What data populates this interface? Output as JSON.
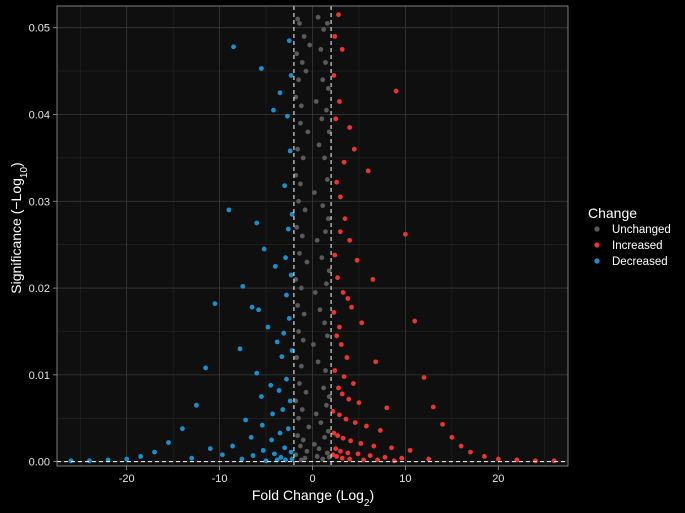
{
  "chart_data": {
    "type": "scatter",
    "title": "",
    "xlabel": "Fold Change (Log",
    "xlabel_sub": "2",
    "xlabel_end": ")",
    "ylabel": "Significance (−Log",
    "ylabel_sub": "10",
    "ylabel_end": ")",
    "xlim": [
      -27.5,
      27.5
    ],
    "ylim": [
      -0.0005,
      0.0525
    ],
    "x_ticks": [
      -20,
      -10,
      0,
      10,
      20
    ],
    "x_tick_labels": [
      "-20",
      "-10",
      "0",
      "10",
      "20"
    ],
    "y_ticks": [
      0,
      0.01,
      0.02,
      0.03,
      0.04,
      0.05
    ],
    "y_tick_labels": [
      "0.00",
      "0.01",
      "0.02",
      "0.03",
      "0.04",
      "0.05"
    ],
    "thresholds": {
      "x": [
        -2,
        2
      ],
      "y": 0
    },
    "grid": true,
    "legend": {
      "title": "Change",
      "position": "right"
    },
    "colors": {
      "background": "#000000",
      "panel": "#0f0f0f",
      "grid": "#3a3a3a",
      "Unchanged": "#5a5a5a",
      "Increased": "#ee3333",
      "Decreased": "#1a8fd0"
    },
    "series": [
      {
        "name": "Unchanged",
        "points": [
          [
            -1.6,
            0.051
          ],
          [
            -1.4,
            0.0505
          ],
          [
            -0.9,
            0.049
          ],
          [
            0.6,
            0.0512
          ],
          [
            1.2,
            0.0498
          ],
          [
            1.6,
            0.0505
          ],
          [
            -1.7,
            0.047
          ],
          [
            -1.1,
            0.046
          ],
          [
            -0.3,
            0.048
          ],
          [
            0.9,
            0.0475
          ],
          [
            1.4,
            0.046
          ],
          [
            -1.5,
            0.044
          ],
          [
            -0.7,
            0.045
          ],
          [
            1.1,
            0.044
          ],
          [
            1.7,
            0.043
          ],
          [
            -1.8,
            0.042
          ],
          [
            -1.2,
            0.041
          ],
          [
            0.4,
            0.0415
          ],
          [
            1.5,
            0.0405
          ],
          [
            -1.3,
            0.039
          ],
          [
            -0.5,
            0.038
          ],
          [
            1.0,
            0.0395
          ],
          [
            1.8,
            0.038
          ],
          [
            -1.6,
            0.036
          ],
          [
            -1.0,
            0.035
          ],
          [
            0.7,
            0.0365
          ],
          [
            1.3,
            0.035
          ],
          [
            -1.8,
            0.033
          ],
          [
            -1.3,
            0.032
          ],
          [
            0.2,
            0.031
          ],
          [
            1.6,
            0.0325
          ],
          [
            -1.5,
            0.03
          ],
          [
            -0.8,
            0.029
          ],
          [
            1.1,
            0.0295
          ],
          [
            1.7,
            0.028
          ],
          [
            -1.7,
            0.027
          ],
          [
            -1.1,
            0.026
          ],
          [
            0.5,
            0.0255
          ],
          [
            1.4,
            0.0265
          ],
          [
            -1.4,
            0.024
          ],
          [
            -0.6,
            0.023
          ],
          [
            1.0,
            0.0235
          ],
          [
            1.8,
            0.022
          ],
          [
            -1.8,
            0.021
          ],
          [
            -1.2,
            0.02
          ],
          [
            0.3,
            0.0195
          ],
          [
            1.5,
            0.0205
          ],
          [
            -1.6,
            0.018
          ],
          [
            -0.9,
            0.017
          ],
          [
            0.8,
            0.0175
          ],
          [
            1.3,
            0.016
          ],
          [
            -1.5,
            0.015
          ],
          [
            -1.0,
            0.014
          ],
          [
            0.1,
            0.0135
          ],
          [
            1.6,
            0.0145
          ],
          [
            -1.7,
            0.012
          ],
          [
            -1.2,
            0.011
          ],
          [
            0.6,
            0.0115
          ],
          [
            1.4,
            0.0105
          ],
          [
            -1.4,
            0.009
          ],
          [
            -0.7,
            0.008
          ],
          [
            1.2,
            0.0085
          ],
          [
            1.8,
            0.0075
          ],
          [
            -1.8,
            0.007
          ],
          [
            -1.1,
            0.006
          ],
          [
            0.4,
            0.0055
          ],
          [
            1.5,
            0.0065
          ],
          [
            -1.5,
            0.005
          ],
          [
            -0.4,
            0.004
          ],
          [
            0.9,
            0.0045
          ],
          [
            1.7,
            0.0035
          ],
          [
            -1.6,
            0.003
          ],
          [
            -1.0,
            0.0025
          ],
          [
            0.2,
            0.002
          ],
          [
            1.3,
            0.0028
          ],
          [
            -1.3,
            0.0018
          ],
          [
            -0.6,
            0.0012
          ],
          [
            0.7,
            0.0015
          ],
          [
            1.6,
            0.001
          ],
          [
            -1.8,
            0.0008
          ],
          [
            -0.8,
            0.0004
          ],
          [
            0.5,
            0.0006
          ],
          [
            1.1,
            0.0003
          ],
          [
            1.8,
            0.0005
          ],
          [
            -1.2,
            0.0002
          ]
        ]
      },
      {
        "name": "Increased",
        "points": [
          [
            9.0,
            0.0427
          ],
          [
            10.0,
            0.0262
          ],
          [
            11.0,
            0.0162
          ],
          [
            12.0,
            0.0097
          ],
          [
            13.0,
            0.0063
          ],
          [
            14.0,
            0.0043
          ],
          [
            15.0,
            0.0028
          ],
          [
            16.0,
            0.0018
          ],
          [
            17.0,
            0.0011
          ],
          [
            18.5,
            0.0006
          ],
          [
            20.0,
            0.0003
          ],
          [
            22.0,
            0.0002
          ],
          [
            24.0,
            0.0001
          ],
          [
            26.0,
            0.0001
          ],
          [
            4.0,
            0.0385
          ],
          [
            4.5,
            0.036
          ],
          [
            6.0,
            0.0335
          ],
          [
            3.0,
            0.0305
          ],
          [
            3.5,
            0.028
          ],
          [
            4.0,
            0.0255
          ],
          [
            4.8,
            0.0232
          ],
          [
            6.5,
            0.021
          ],
          [
            3.3,
            0.0195
          ],
          [
            4.2,
            0.0178
          ],
          [
            5.3,
            0.016
          ],
          [
            2.6,
            0.0145
          ],
          [
            3.1,
            0.0135
          ],
          [
            3.7,
            0.012
          ],
          [
            6.8,
            0.0115
          ],
          [
            2.4,
            0.0105
          ],
          [
            3.4,
            0.0098
          ],
          [
            4.4,
            0.009
          ],
          [
            2.8,
            0.0085
          ],
          [
            3.2,
            0.0078
          ],
          [
            3.9,
            0.0072
          ],
          [
            5.0,
            0.0068
          ],
          [
            8.0,
            0.0062
          ],
          [
            2.2,
            0.0058
          ],
          [
            2.9,
            0.0054
          ],
          [
            3.6,
            0.0049
          ],
          [
            4.6,
            0.0045
          ],
          [
            5.8,
            0.0041
          ],
          [
            7.3,
            0.0036
          ],
          [
            2.3,
            0.0033
          ],
          [
            2.7,
            0.003
          ],
          [
            3.3,
            0.0027
          ],
          [
            4.1,
            0.0024
          ],
          [
            5.2,
            0.0021
          ],
          [
            6.6,
            0.0018
          ],
          [
            8.5,
            0.0016
          ],
          [
            10.5,
            0.0013
          ],
          [
            2.5,
            0.0015
          ],
          [
            3.0,
            0.0012
          ],
          [
            3.8,
            0.001
          ],
          [
            4.9,
            0.0009
          ],
          [
            6.2,
            0.0007
          ],
          [
            7.8,
            0.0005
          ],
          [
            9.6,
            0.0004
          ],
          [
            12.5,
            0.0003
          ],
          [
            2.2,
            0.0008
          ],
          [
            2.6,
            0.0006
          ],
          [
            3.2,
            0.0004
          ],
          [
            4.0,
            0.0003
          ],
          [
            5.5,
            0.0002
          ],
          [
            7.0,
            0.0002
          ],
          [
            8.8,
            0.0001
          ],
          [
            2.4,
            0.049
          ],
          [
            2.8,
            0.0515
          ],
          [
            3.2,
            0.0475
          ],
          [
            2.3,
            0.0445
          ],
          [
            2.9,
            0.0415
          ],
          [
            2.5,
            0.0395
          ],
          [
            3.4,
            0.0345
          ],
          [
            2.6,
            0.0322
          ],
          [
            3.0,
            0.0265
          ],
          [
            2.4,
            0.0238
          ],
          [
            2.7,
            0.0212
          ],
          [
            3.8,
            0.0188
          ],
          [
            2.3,
            0.0172
          ],
          [
            2.9,
            0.0155
          ]
        ]
      },
      {
        "name": "Decreased",
        "points": [
          [
            -8.5,
            0.0478
          ],
          [
            -5.5,
            0.0453
          ],
          [
            -4.2,
            0.0405
          ],
          [
            -3.5,
            0.0425
          ],
          [
            -9.0,
            0.029
          ],
          [
            -6.0,
            0.0275
          ],
          [
            -5.2,
            0.0245
          ],
          [
            -4.0,
            0.0225
          ],
          [
            -7.5,
            0.0202
          ],
          [
            -10.5,
            0.0182
          ],
          [
            -6.5,
            0.0178
          ],
          [
            -5.8,
            0.0175
          ],
          [
            -4.8,
            0.0155
          ],
          [
            -3.8,
            0.0138
          ],
          [
            -7.8,
            0.013
          ],
          [
            -3.3,
            0.0121
          ],
          [
            -11.5,
            0.0108
          ],
          [
            -6.0,
            0.0102
          ],
          [
            -2.8,
            0.0095
          ],
          [
            -4.5,
            0.0088
          ],
          [
            -3.6,
            0.0082
          ],
          [
            -5.5,
            0.0075
          ],
          [
            -2.4,
            0.007
          ],
          [
            -12.5,
            0.0065
          ],
          [
            -3.2,
            0.006
          ],
          [
            -4.3,
            0.0055
          ],
          [
            -7.2,
            0.0048
          ],
          [
            -5.4,
            0.0042
          ],
          [
            -2.6,
            0.0038
          ],
          [
            -14.0,
            0.0038
          ],
          [
            -3.5,
            0.0033
          ],
          [
            -6.6,
            0.0028
          ],
          [
            -4.4,
            0.0025
          ],
          [
            -15.5,
            0.0022
          ],
          [
            -8.6,
            0.0018
          ],
          [
            -3.0,
            0.0016
          ],
          [
            -11.0,
            0.0015
          ],
          [
            -5.3,
            0.0013
          ],
          [
            -17.0,
            0.0011
          ],
          [
            -2.3,
            0.0011
          ],
          [
            -4.1,
            0.0009
          ],
          [
            -9.7,
            0.0008
          ],
          [
            -6.4,
            0.0007
          ],
          [
            -18.5,
            0.0006
          ],
          [
            -3.4,
            0.0005
          ],
          [
            -13.0,
            0.0004
          ],
          [
            -20.0,
            0.0003
          ],
          [
            -7.6,
            0.0003
          ],
          [
            -22.0,
            0.0002
          ],
          [
            -24.0,
            0.0001
          ],
          [
            -26.0,
            0.0001
          ],
          [
            -2.2,
            0.0003
          ],
          [
            -2.9,
            0.0002
          ],
          [
            -3.8,
            0.0002
          ],
          [
            -5.0,
            0.0001
          ],
          [
            -2.5,
            0.0485
          ],
          [
            -2.3,
            0.0445
          ],
          [
            -2.7,
            0.0398
          ],
          [
            -2.4,
            0.0358
          ],
          [
            -3.0,
            0.0318
          ],
          [
            -2.2,
            0.0285
          ],
          [
            -2.6,
            0.0268
          ],
          [
            -2.9,
            0.0235
          ],
          [
            -2.3,
            0.0215
          ],
          [
            -2.8,
            0.0192
          ],
          [
            -2.5,
            0.0165
          ],
          [
            -3.1,
            0.0148
          ],
          [
            -2.2,
            0.0128
          ]
        ]
      }
    ]
  }
}
